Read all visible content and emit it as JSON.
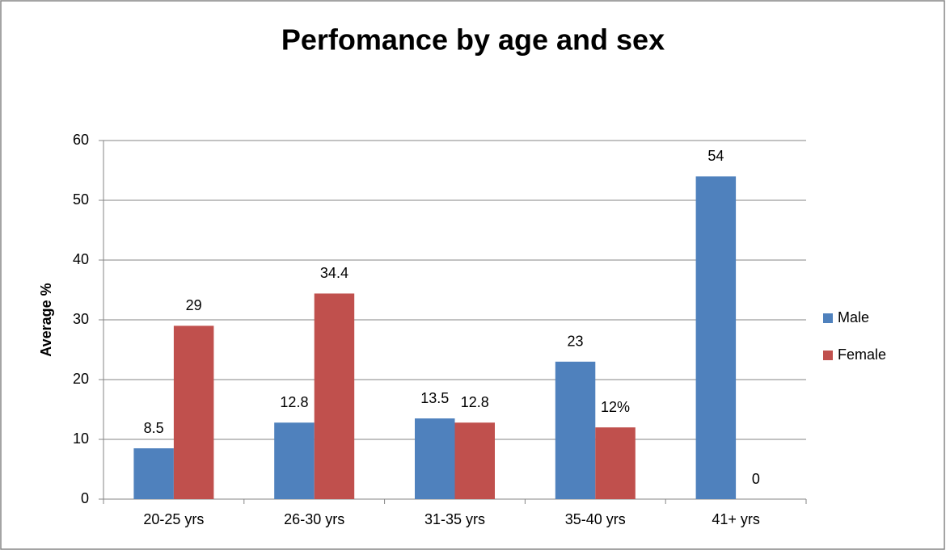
{
  "chart_data": {
    "type": "bar",
    "title": "Perfomance by age and sex",
    "y_label": "Average %",
    "categories": [
      "20-25 yrs",
      "26-30 yrs",
      "31-35 yrs",
      "35-40 yrs",
      "41+ yrs"
    ],
    "series": [
      {
        "name": "Male",
        "color": "#4f81bd",
        "values": [
          8.5,
          12.8,
          13.5,
          23,
          54
        ]
      },
      {
        "name": "Female",
        "color": "#c0504d",
        "values": [
          29,
          34.4,
          12.8,
          12,
          0
        ],
        "value_labels": [
          "29",
          "34.4",
          "12.8",
          "12%",
          "0"
        ]
      }
    ],
    "ylim": [
      0,
      60
    ],
    "yticks": [
      0,
      10,
      20,
      30,
      40,
      50,
      60
    ],
    "grid": true,
    "legend": "right"
  }
}
